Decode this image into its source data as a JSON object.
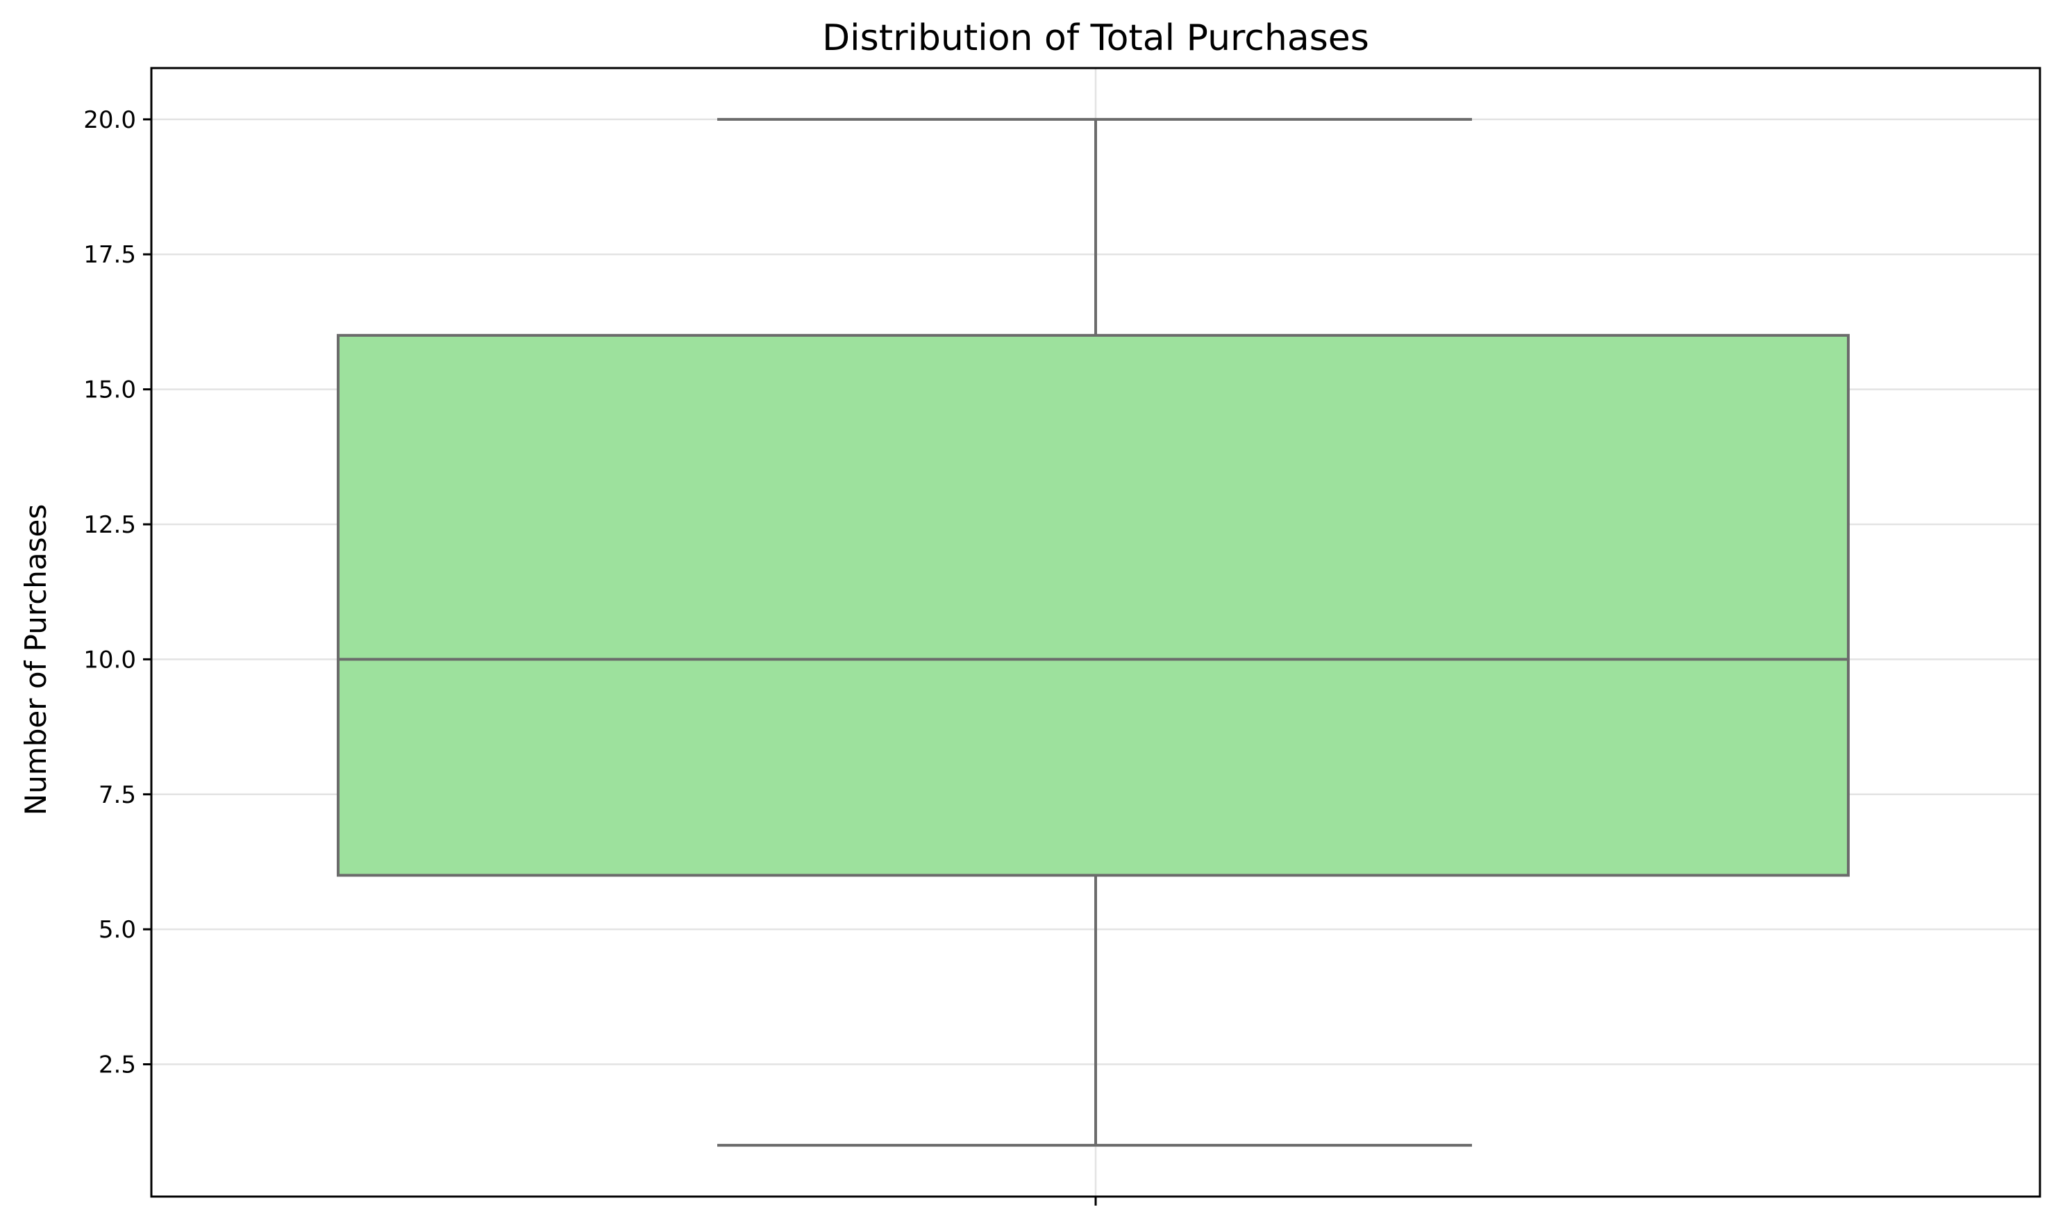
{
  "chart_data": {
    "type": "box",
    "title": "Distribution of Total Purchases",
    "xlabel": "",
    "ylabel": "Number of Purchases",
    "ylim": [
      0.05,
      20.95
    ],
    "yticks": [
      2.5,
      5.0,
      7.5,
      10.0,
      12.5,
      15.0,
      17.5,
      20.0
    ],
    "ytick_labels": [
      "2.5",
      "5.0",
      "7.5",
      "10.0",
      "12.5",
      "15.0",
      "17.5",
      "20.0"
    ],
    "grid": true,
    "boxes": [
      {
        "whisker_low": 1,
        "q1": 6,
        "median": 10,
        "q3": 16,
        "whisker_high": 20
      }
    ],
    "colors": {
      "box_fill": "#9de19d",
      "box_edge": "#6b6b6b",
      "grid": "#e3e3e3",
      "axis": "#000000"
    }
  }
}
